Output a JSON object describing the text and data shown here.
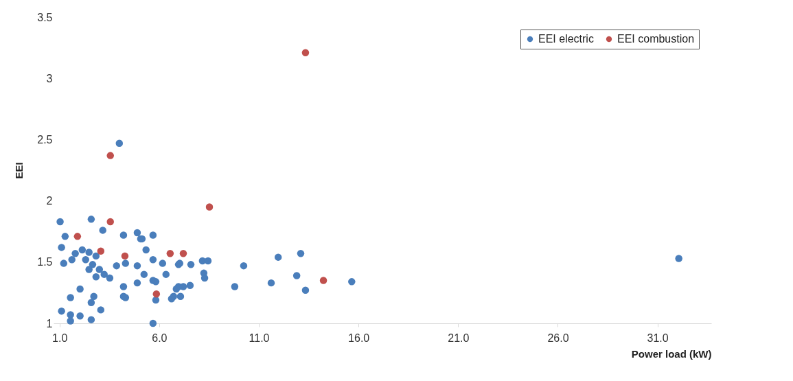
{
  "chart_data": {
    "type": "scatter",
    "xlabel": "Power load (kW)",
    "ylabel": "EEI",
    "xlim": [
      0.7,
      33.7
    ],
    "ylim": [
      1,
      3.5
    ],
    "xticks": [
      {
        "value": 1,
        "label": "1.0"
      },
      {
        "value": 6,
        "label": "6.0"
      },
      {
        "value": 11,
        "label": "11.0"
      },
      {
        "value": 16,
        "label": "16.0"
      },
      {
        "value": 21,
        "label": "21.0"
      },
      {
        "value": 26,
        "label": "26.0"
      },
      {
        "value": 31,
        "label": "31.0"
      }
    ],
    "yticks": [
      1,
      1.5,
      2,
      2.5,
      3,
      3.5
    ],
    "grid": false,
    "legend": "top right",
    "marker": "circle",
    "series": [
      {
        "name": "EEI electric",
        "color": "#4a7ebb",
        "x": [
          1.03,
          2.59,
          3.17,
          4.21,
          4.9,
          5.07,
          5.69,
          1.28,
          1.1,
          5.34,
          5.69,
          6.17,
          4.9,
          5.24,
          6.34,
          1.21,
          2.14,
          2.48,
          2.83,
          2.31,
          2.66,
          3.0,
          3.24,
          3.52,
          1.79,
          1.62,
          2.83,
          2.48,
          3.86,
          4.31,
          4.21,
          4.21,
          4.9,
          2.03,
          1.55,
          2.72,
          2.59,
          1.1,
          1.55,
          2.03,
          2.59,
          3.07,
          5.69,
          5.69,
          5.83,
          6.72,
          6.97,
          6.97,
          1.55,
          4.0,
          5.14,
          7.03,
          7.59,
          8.17,
          8.45,
          8.24,
          8.28,
          10.24,
          9.79,
          5.83,
          6.62,
          6.86,
          7.21,
          7.55,
          7.07,
          4.31,
          11.97,
          13.1,
          11.62,
          12.9,
          13.34,
          15.66,
          32.07
        ],
        "values": [
          1.83,
          1.85,
          1.76,
          1.72,
          1.74,
          1.69,
          1.72,
          1.71,
          1.62,
          1.6,
          1.52,
          1.49,
          1.47,
          1.4,
          1.4,
          1.49,
          1.6,
          1.58,
          1.55,
          1.52,
          1.48,
          1.44,
          1.4,
          1.37,
          1.57,
          1.52,
          1.38,
          1.44,
          1.47,
          1.49,
          1.3,
          1.22,
          1.33,
          1.28,
          1.21,
          1.22,
          1.17,
          1.1,
          1.07,
          1.06,
          1.03,
          1.11,
          1.0,
          1.35,
          1.19,
          1.22,
          1.3,
          1.48,
          1.02,
          2.47,
          1.69,
          1.49,
          1.48,
          1.51,
          1.51,
          1.41,
          1.37,
          1.47,
          1.3,
          1.34,
          1.2,
          1.28,
          1.3,
          1.31,
          1.22,
          1.21,
          1.54,
          1.57,
          1.33,
          1.39,
          1.27,
          1.34,
          1.53
        ]
      },
      {
        "name": "EEI combustion",
        "color": "#c0504d",
        "x": [
          1.9,
          3.07,
          3.55,
          3.55,
          4.28,
          5.86,
          6.55,
          7.21,
          8.52,
          13.34,
          14.24
        ],
        "values": [
          1.71,
          1.59,
          2.37,
          1.83,
          1.55,
          1.24,
          1.57,
          1.57,
          1.95,
          3.21,
          1.35
        ]
      }
    ]
  }
}
